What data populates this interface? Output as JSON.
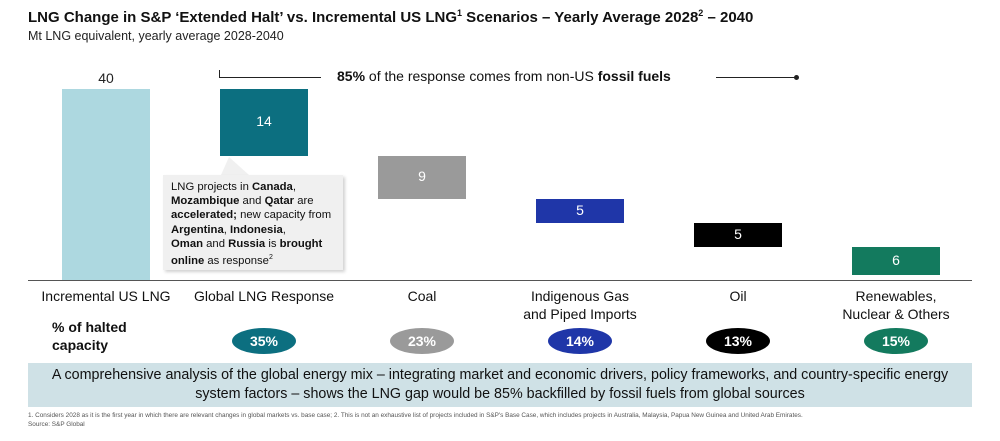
{
  "header": {
    "title": "LNG Change in S&P ‘Extended Halt’ vs. Incremental US LNG",
    "title_sup1": "1",
    "title_mid": " Scenarios – Yearly Average 2028",
    "title_sup2": "2",
    "title_end": " – 2040",
    "subtitle": "Mt LNG equivalent, yearly average 2028-2040"
  },
  "callout": {
    "pct": "85%",
    "mid": " of the response comes from non-US ",
    "bold": "fossil fuels"
  },
  "note": {
    "t1": "LNG projects in ",
    "b1": "Canada",
    "t2": ",",
    "b2": "Mozambique",
    "t3": " and ",
    "b3": "Qatar",
    "t4": " are",
    "b4": "accelerated;",
    "t5": " new capacity from ",
    "b5": "Argentina",
    "t6": ", ",
    "b6": "Indonesia",
    "t7": ",",
    "b7": "Oman",
    "t8": " and ",
    "b8": "Russia",
    "t9": " is ",
    "b9": "brought online",
    "t10": " as response",
    "sup": "2"
  },
  "pct_row_title": "% of halted capacity",
  "summary": "A comprehensive analysis of the global energy mix – integrating market and economic drivers, policy frameworks, and country-specific energy system factors – shows the LNG gap would be 85% backfilled by fossil fuels from global sources",
  "footnote_1": "1. Considers 2028 as it is the first year in which there are relevant changes in global markets vs. base case; 2. This is not an exhaustive list of projects included in S&P's Base Case, which includes projects in Australia, Malaysia, Papua New Guinea and United Arab Emirates.",
  "footnote_2": "Source: S&P Global",
  "chart_data": {
    "type": "bar",
    "subtype": "waterfall",
    "categories": [
      "Incremental US LNG",
      "Global LNG Response",
      "Coal",
      "Indigenous Gas and Piped Imports",
      "Oil",
      "Renewables, Nuclear & Others"
    ],
    "category_lines": [
      [
        "Incremental US LNG"
      ],
      [
        "Global LNG Response"
      ],
      [
        "Coal"
      ],
      [
        "Indigenous Gas",
        "and Piped Imports"
      ],
      [
        "Oil"
      ],
      [
        "Renewables,",
        "Nuclear & Others"
      ]
    ],
    "values": [
      40,
      14,
      9,
      5,
      5,
      6
    ],
    "value_labels": [
      "40",
      "14",
      "9",
      "5",
      "5",
      "6"
    ],
    "pct_of_halted_capacity": [
      "",
      "35%",
      "23%",
      "14%",
      "13%",
      "15%"
    ],
    "colors": [
      "#add8e0",
      "#0c6f80",
      "#9a9a9a",
      "#1f36a8",
      "#000000",
      "#137a5e"
    ],
    "ylim": [
      0,
      40
    ],
    "grid": false,
    "legend": "none"
  }
}
